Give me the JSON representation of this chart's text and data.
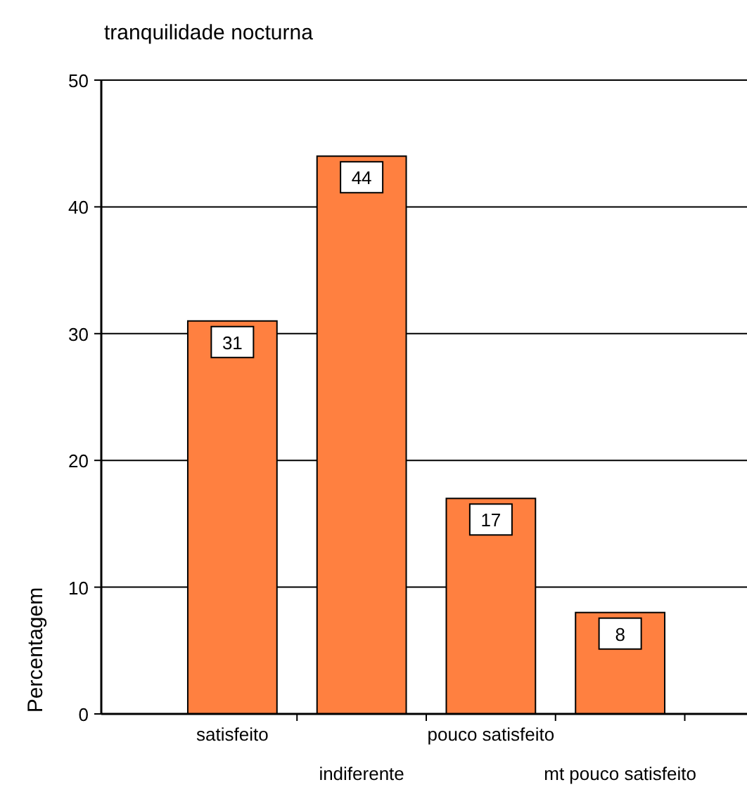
{
  "chart_data": {
    "type": "bar",
    "title": "tranquilidade nocturna",
    "ylabel": "Percentagem",
    "categories": [
      "satisfeito",
      "indiferente",
      "pouco satisfeito",
      "mt pouco satisfeito"
    ],
    "values": [
      31,
      44,
      17,
      8
    ],
    "color": "#ff8040",
    "ylim": [
      0,
      50
    ],
    "yticks": [
      0,
      10,
      20,
      30,
      40,
      50
    ],
    "grid": "y",
    "data_labels": true
  }
}
